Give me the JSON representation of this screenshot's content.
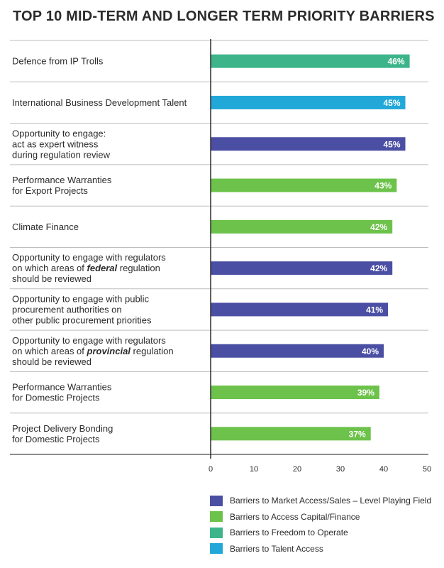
{
  "chart_data": {
    "type": "bar",
    "orientation": "horizontal",
    "title": "TOP 10 MID-TERM AND LONGER TERM PRIORITY BARRIERS",
    "xlim": [
      0,
      50
    ],
    "xticks": [
      0,
      10,
      20,
      30,
      40,
      50
    ],
    "grid": false,
    "legend_position": "bottom-right",
    "categories": [
      [
        "Defence from IP Trolls"
      ],
      [
        "International Business Development Talent"
      ],
      [
        "Opportunity to engage:",
        "act as expert witness",
        "during regulation review"
      ],
      [
        "Performance Warranties",
        "for Export Projects"
      ],
      [
        "Climate Finance"
      ],
      [
        "Opportunity to engage with regulators",
        "on which areas of |federal| regulation",
        "should be reviewed"
      ],
      [
        "Opportunity to engage with public",
        "procurement authorities on",
        "other public procurement priorities"
      ],
      [
        "Opportunity to engage with regulators",
        "on which areas of |provincial| regulation",
        "should be reviewed"
      ],
      [
        "Performance Warranties",
        "for Domestic Projects"
      ],
      [
        "Project Delivery Bonding",
        "for Domestic Projects"
      ]
    ],
    "values": [
      46,
      45,
      45,
      43,
      42,
      42,
      41,
      40,
      39,
      37
    ],
    "value_labels": [
      "46%",
      "45%",
      "45%",
      "43%",
      "42%",
      "42%",
      "41%",
      "40%",
      "39%",
      "37%"
    ],
    "bar_groups": [
      2,
      3,
      0,
      1,
      1,
      0,
      0,
      0,
      1,
      1
    ],
    "legend": [
      {
        "label": "Barriers to Market Access/Sales – Level Playing Field",
        "color": "#4B4FA3"
      },
      {
        "label": "Barriers to Access Capital/Finance",
        "color": "#6CC24A"
      },
      {
        "label": "Barriers to Freedom to Operate",
        "color": "#3DB48A"
      },
      {
        "label": "Barriers to Talent Access",
        "color": "#22A8D8"
      }
    ]
  }
}
